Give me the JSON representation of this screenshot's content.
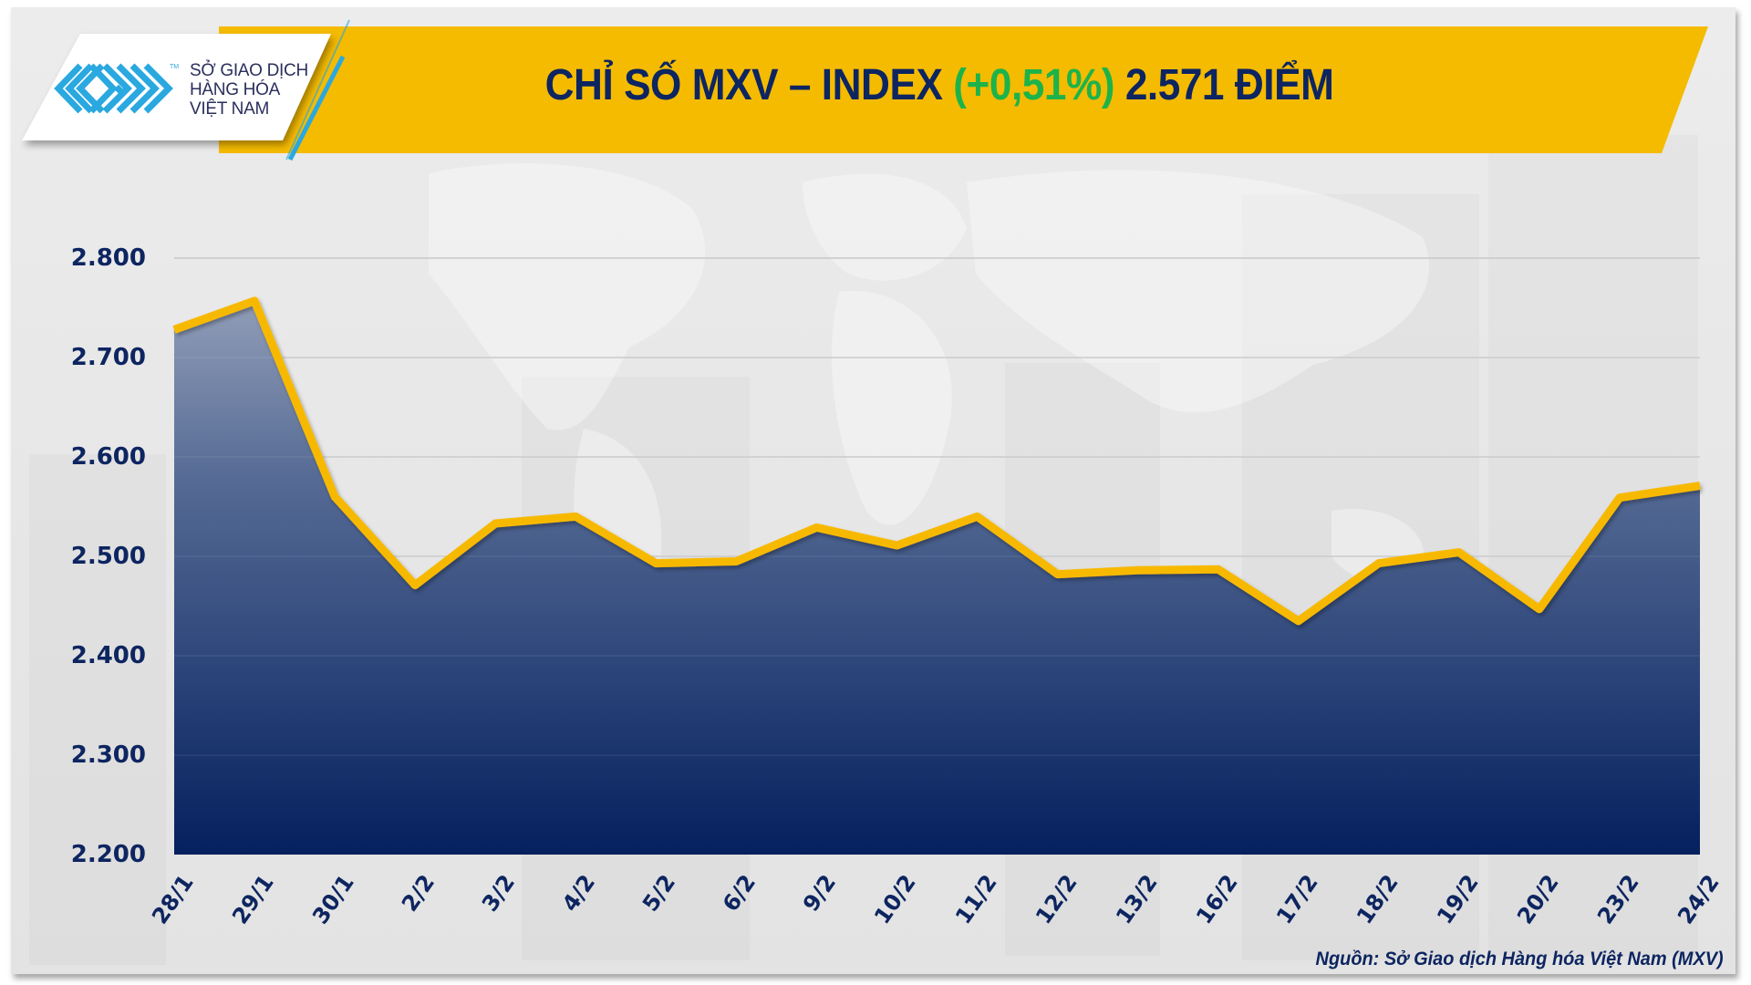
{
  "header": {
    "logo": {
      "icon": "mxv-maze-logo-icon",
      "tm": "TM",
      "line1": "SỞ GIAO DỊCH",
      "line2": "HÀNG HÓA",
      "line3": "VIỆT NAM"
    },
    "title_main": "CHỈ SỐ MXV – INDEX ",
    "title_change": "(+0,51%)",
    "title_value": " 2.571 ĐIỂM"
  },
  "colors": {
    "band_yellow": "#f5bb00",
    "title_navy": "#0d2560",
    "change_green": "#1db34a",
    "line_yellow": "#f7b900",
    "fill_top": "#9aa5bd",
    "fill_bottom": "#04205e",
    "logo_blue": "#2aa8e0",
    "grid": "#c8c8c8"
  },
  "source": "Nguồn: Sở Giao dịch Hàng hóa Việt Nam (MXV)",
  "chart_data": {
    "type": "area",
    "title": "CHỈ SỐ MXV – INDEX (+0,51%) 2.571 ĐIỂM",
    "xlabel": "",
    "ylabel": "",
    "categories": [
      "28/1",
      "29/1",
      "30/1",
      "2/2",
      "3/2",
      "4/2",
      "5/2",
      "6/2",
      "9/2",
      "10/2",
      "11/2",
      "12/2",
      "13/2",
      "16/2",
      "17/2",
      "18/2",
      "19/2",
      "20/2",
      "23/2",
      "24/2"
    ],
    "series": [
      {
        "name": "MXV-Index",
        "values": [
          2728,
          2757,
          2560,
          2471,
          2533,
          2540,
          2493,
          2495,
          2529,
          2511,
          2540,
          2482,
          2486,
          2487,
          2435,
          2493,
          2504,
          2447,
          2559,
          2571
        ]
      }
    ],
    "ylim": [
      2200,
      2800
    ],
    "yticks": [
      2800,
      2700,
      2600,
      2500,
      2400,
      2300,
      2200
    ],
    "ytick_labels": [
      "2.800",
      "2.700",
      "2.600",
      "2.500",
      "2.400",
      "2.300",
      "2.200"
    ],
    "grid": true,
    "legend": "none"
  }
}
